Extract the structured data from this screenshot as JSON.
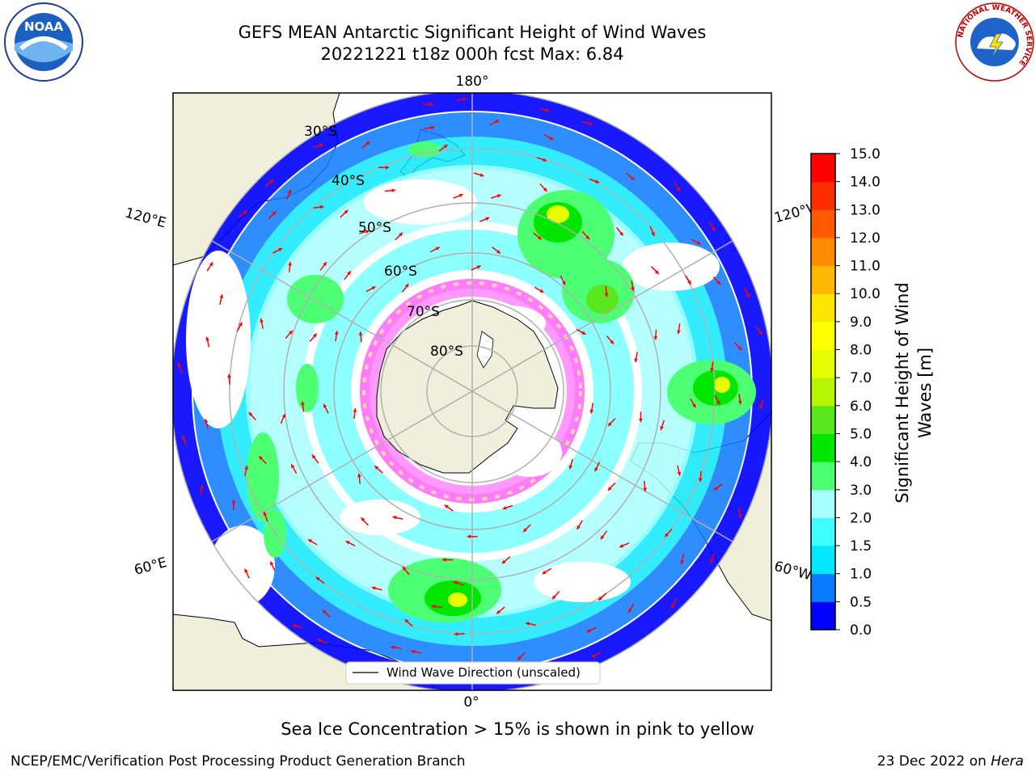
{
  "header": {
    "title_line1": "GEFS MEAN Antarctic Significant Height of Wind Waves",
    "title_line2": "20221221 t18z 000h fcst   Max: 6.84"
  },
  "map": {
    "projection": "south-polar-stereographic",
    "lon_labels": {
      "top": "180°",
      "upper_left": "120°E",
      "upper_right": "120°W",
      "lower_left": "60°E",
      "lower_right": "60°W",
      "bottom": "0°"
    },
    "lat_labels": [
      "30°S",
      "40°S",
      "50°S",
      "60°S",
      "70°S",
      "80°S"
    ],
    "legend_label": "Wind Wave Direction (unscaled)",
    "arrow_color": "#ff0000",
    "land_color": "#efefdb",
    "sea_ice_note": "Sea Ice Concentration > 15% is shown in pink to yellow"
  },
  "colorbar": {
    "label_line1": "Significant Height of Wind",
    "label_line2": "Waves [m]",
    "tick_labels": [
      "0.0",
      "0.5",
      "1.0",
      "1.5",
      "2.0",
      "3.0",
      "4.0",
      "5.0",
      "6.0",
      "7.0",
      "8.0",
      "9.0",
      "10.0",
      "11.0",
      "12.0",
      "13.0",
      "14.0",
      "15.0"
    ],
    "colors": [
      "#0000ff",
      "#0a7aff",
      "#00e8ff",
      "#40ffff",
      "#a8ffff",
      "#4dff73",
      "#00e600",
      "#5ae61e",
      "#b8f500",
      "#e6ff00",
      "#ffff00",
      "#ffe600",
      "#ffb800",
      "#ff8c00",
      "#ff5a00",
      "#ff2d00",
      "#ff0000"
    ]
  },
  "footer": {
    "left": "NCEP/EMC/Verification Post Processing Product Generation Branch",
    "right_date": "23 Dec 2022 on ",
    "right_machine": "Hera"
  },
  "logos": {
    "noaa": "NOAA",
    "nws": "NATIONAL WEATHER SERVICE"
  }
}
